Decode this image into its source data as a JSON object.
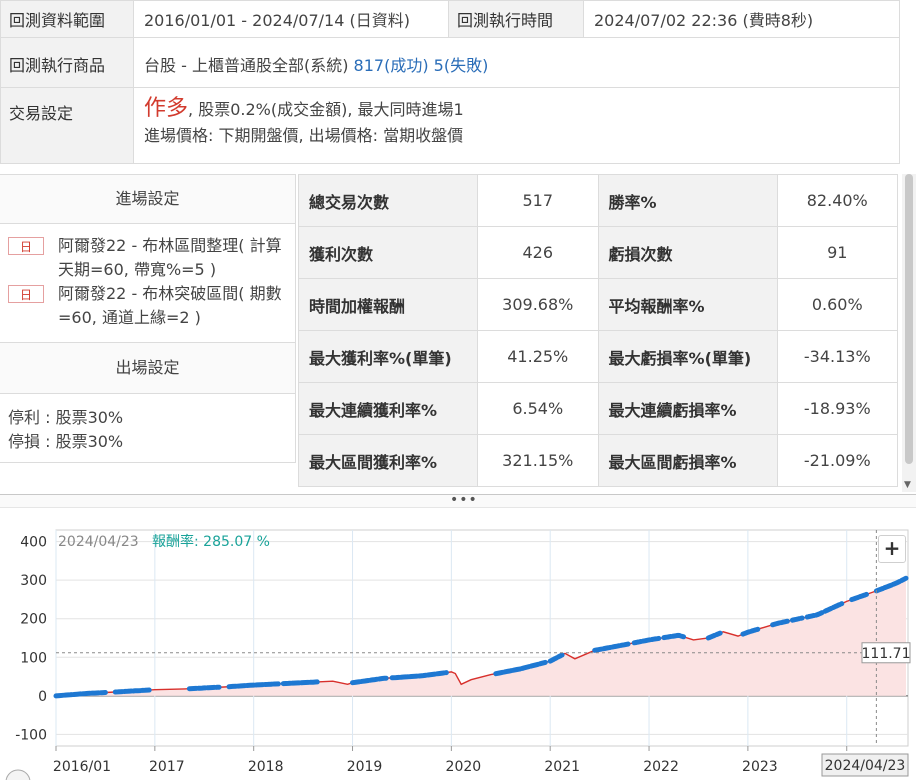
{
  "info": {
    "range_label": "回測資料範圍",
    "range_value": "2016/01/01 - 2024/07/14 (日資料)",
    "exec_time_label": "回測執行時間",
    "exec_time_value": "2024/07/02 22:36 (費時8秒)",
    "product_label": "回測執行商品",
    "product_value": "台股 - 上櫃普通股全部(系統)",
    "success": "817(成功)",
    "fail": "5(失敗)",
    "trade_label": "交易設定",
    "trade_direction": "作多",
    "trade_detail1": ", 股票0.2%(成交金額), 最大同時進場1",
    "trade_detail2": "進場價格: 下期開盤價, 出場價格: 當期收盤價"
  },
  "entry": {
    "header": "進場設定",
    "rules": [
      {
        "badge": "日",
        "text": "阿爾發22 - 布林區間整理( 計算天期=60, 帶寬%=5 )"
      },
      {
        "badge": "日",
        "text": "阿爾發22 - 布林突破區間( 期數=60, 通道上緣=2 )"
      }
    ]
  },
  "exit": {
    "header": "出場設定",
    "take_profit": "停利 : 股票30%",
    "stop_loss": "停損 : 股票30%"
  },
  "stats": [
    [
      {
        "k": "總交易次數",
        "v": "517",
        "red": false
      },
      {
        "k": "勝率%",
        "v": "82.40%",
        "red": true
      }
    ],
    [
      {
        "k": "獲利次數",
        "v": "426",
        "red": false
      },
      {
        "k": "虧損次數",
        "v": "91",
        "red": false
      }
    ],
    [
      {
        "k": "時間加權報酬",
        "v": "309.68%",
        "red": true
      },
      {
        "k": "平均報酬率%",
        "v": "0.60%",
        "red": false
      }
    ],
    [
      {
        "k": "最大獲利率%(單筆)",
        "v": "41.25%",
        "red": false
      },
      {
        "k": "最大虧損率%(單筆)",
        "v": "-34.13%",
        "red": false
      }
    ],
    [
      {
        "k": "最大連續獲利率%",
        "v": "6.54%",
        "red": false
      },
      {
        "k": "最大連續虧損率%",
        "v": "-18.93%",
        "red": false
      }
    ],
    [
      {
        "k": "最大區間獲利率%",
        "v": "321.15%",
        "red": false
      },
      {
        "k": "最大區間虧損率%",
        "v": "-21.09%",
        "red": false
      }
    ]
  ],
  "splitter_dots": "•••",
  "zoom_label": "+",
  "colors": {
    "accent_blue": "#2a6db8",
    "accent_red": "#d23b2e",
    "line_blue": "#1e78d2",
    "line_red": "#d8302c",
    "fill": "#fbe3e3"
  },
  "chart_data": {
    "type": "line",
    "tooltip_date": "2024/04/23",
    "tooltip_label": "報酬率: 285.07 %",
    "crosshair_value": "111.71",
    "crosshair_date": "2024/04/23",
    "x_ticks": [
      "2016/01",
      "2017",
      "2018",
      "2019",
      "2020",
      "2021",
      "2022",
      "2023",
      "2024"
    ],
    "y_ticks": [
      400,
      300,
      200,
      100,
      0,
      -100
    ],
    "ylim": [
      -130,
      430
    ],
    "series": [
      {
        "points": [
          [
            2016.0,
            0
          ],
          [
            2016.3,
            6
          ],
          [
            2016.6,
            10
          ],
          [
            2017.0,
            16
          ],
          [
            2017.3,
            18
          ],
          [
            2017.7,
            23
          ],
          [
            2018.0,
            28
          ],
          [
            2018.4,
            33
          ],
          [
            2018.8,
            38
          ],
          [
            2018.95,
            30
          ],
          [
            2019.0,
            34
          ],
          [
            2019.3,
            45
          ],
          [
            2019.7,
            52
          ],
          [
            2020.0,
            62
          ],
          [
            2020.04,
            58
          ],
          [
            2020.1,
            30
          ],
          [
            2020.2,
            42
          ],
          [
            2020.4,
            55
          ],
          [
            2020.7,
            70
          ],
          [
            2021.0,
            90
          ],
          [
            2021.15,
            110
          ],
          [
            2021.25,
            96
          ],
          [
            2021.45,
            118
          ],
          [
            2021.7,
            130
          ],
          [
            2022.0,
            145
          ],
          [
            2022.3,
            157
          ],
          [
            2022.45,
            145
          ],
          [
            2022.6,
            150
          ],
          [
            2022.75,
            166
          ],
          [
            2022.9,
            155
          ],
          [
            2023.0,
            165
          ],
          [
            2023.3,
            188
          ],
          [
            2023.7,
            210
          ],
          [
            2024.0,
            245
          ],
          [
            2024.3,
            272
          ],
          [
            2024.5,
            292
          ],
          [
            2024.6,
            305
          ]
        ]
      }
    ]
  }
}
